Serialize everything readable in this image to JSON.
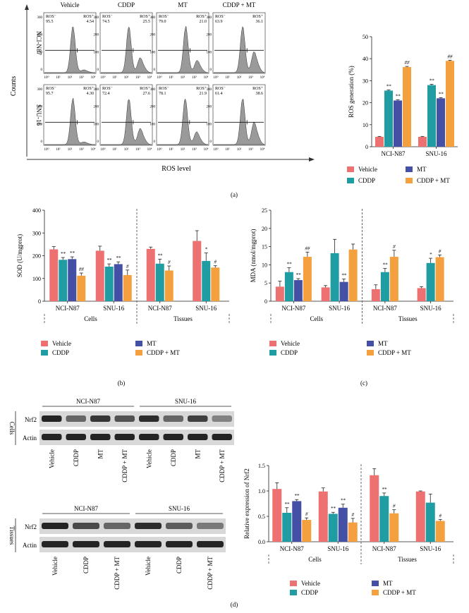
{
  "colors": {
    "vehicle": "#ee7171",
    "cddp": "#1f9da3",
    "mt": "#4450a6",
    "combo": "#f5a03e",
    "hist": "#9a9a9a",
    "wb_band": "#1a1a1a",
    "wb_bg": "#d8d8d8"
  },
  "panel_labels": [
    "(a)",
    "(b)",
    "(c)",
    "(d)"
  ],
  "flow": {
    "conditions": [
      "Vehicle",
      "CDDP",
      "MT",
      "CDDP + MT"
    ],
    "cell_lines": [
      "NCI-N87",
      "SNU-16"
    ],
    "y_label": "Counts",
    "x_label": "ROS level",
    "ros_minus_label": "ROS⁻",
    "ros_plus_label": "ROS⁺",
    "x_ticks": [
      "10⁰",
      "10¹",
      "10²",
      "10³",
      "10⁴"
    ],
    "y_ticks": [
      "0",
      "100",
      "200",
      "300"
    ],
    "percentages": [
      [
        [
          "95.5",
          "4.54"
        ],
        [
          "74.5",
          "25.5"
        ],
        [
          "79.0",
          "21.0"
        ],
        [
          "63.9",
          "36.1"
        ]
      ],
      [
        [
          "95.7",
          "4.30"
        ],
        [
          "72.4",
          "27.6"
        ],
        [
          "78.1",
          "21.9"
        ],
        [
          "61.4",
          "38.6"
        ]
      ]
    ]
  },
  "legend": {
    "vehicle": "Vehicle",
    "cddp": "CDDP",
    "mt": "MT",
    "combo": "CDDP + MT"
  },
  "group_labels": {
    "cells": "Cells",
    "tissues": "Tissues"
  },
  "wb": {
    "cell_lines": [
      "NCI-N87",
      "SNU-16"
    ],
    "row_labels": {
      "cells": "Cells",
      "tissues": "Tissues",
      "nrf2": "Nrf2",
      "actin": "Actin"
    },
    "lanes_cells": [
      "Vehicle",
      "CDDP",
      "MT",
      "CDDP + MT",
      "Vehicle",
      "CDDP",
      "MT",
      "CDDP + MT"
    ],
    "lanes_tissues": [
      "Vehicle",
      "CDDP",
      "CDDP + MT",
      "Vehicle",
      "CDDP",
      "CDDP + MT"
    ],
    "nrf2_intensity_cells": [
      0.95,
      0.6,
      0.85,
      0.7,
      0.9,
      0.6,
      0.8,
      0.45
    ],
    "nrf2_intensity_tissues": [
      0.95,
      0.75,
      0.6,
      0.9,
      0.65,
      0.5
    ]
  },
  "chart_data": [
    {
      "id": "ros",
      "type": "bar",
      "title": "",
      "ylabel": "ROS generation (%)",
      "categories": [
        "NCI-N87",
        "SNU-16"
      ],
      "ylim": [
        0,
        50
      ],
      "yticks": [
        0,
        10,
        20,
        30,
        40,
        50
      ],
      "series": [
        {
          "name": "Vehicle",
          "values": [
            4.5,
            4.5
          ],
          "errors": [
            0.2,
            0.2
          ],
          "sig": [
            "",
            ""
          ]
        },
        {
          "name": "CDDP",
          "values": [
            25.5,
            28
          ],
          "errors": [
            0.3,
            0.4
          ],
          "sig": [
            "**",
            "**"
          ]
        },
        {
          "name": "MT",
          "values": [
            21,
            22
          ],
          "errors": [
            0.3,
            0.3
          ],
          "sig": [
            "**",
            "**"
          ]
        },
        {
          "name": "CDDP + MT",
          "values": [
            36.2,
            39
          ],
          "errors": [
            0.3,
            0.3
          ],
          "sig": [
            "##",
            "##"
          ]
        }
      ]
    },
    {
      "id": "sod",
      "type": "bar",
      "ylabel": "SOD (U/mgprot)",
      "ylim": [
        0,
        400
      ],
      "yticks": [
        0,
        100,
        200,
        300,
        400
      ],
      "categories": [
        "NCI-N87",
        "SNU-16",
        "NCI-N87",
        "SNU-16"
      ],
      "groups": [
        "Cells",
        "Cells",
        "Tissues",
        "Tissues"
      ],
      "series": [
        {
          "name": "Vehicle",
          "values": [
            228,
            222,
            230,
            265
          ],
          "errors": [
            12,
            20,
            8,
            45
          ],
          "sig": [
            "",
            "",
            "",
            ""
          ]
        },
        {
          "name": "CDDP",
          "values": [
            182,
            152,
            165,
            177
          ],
          "errors": [
            10,
            12,
            20,
            35
          ],
          "sig": [
            "**",
            "**",
            "**",
            "*"
          ]
        },
        {
          "name": "MT",
          "values": [
            185,
            163,
            null,
            null
          ],
          "errors": [
            10,
            10,
            null,
            null
          ],
          "sig": [
            "**",
            "**",
            "",
            ""
          ]
        },
        {
          "name": "CDDP + MT",
          "values": [
            112,
            115,
            135,
            148
          ],
          "errors": [
            12,
            22,
            20,
            8
          ],
          "sig": [
            "##",
            "#",
            "#",
            "#"
          ]
        }
      ]
    },
    {
      "id": "mda",
      "type": "bar",
      "ylabel": "MDA (nmol/mgprot)",
      "ylim": [
        0,
        25
      ],
      "yticks": [
        0,
        5,
        10,
        15,
        20,
        25
      ],
      "categories": [
        "NCI-N87",
        "SNU-16",
        "NCI-N87",
        "SNU-16"
      ],
      "groups": [
        "Cells",
        "Cells",
        "Tissues",
        "Tissues"
      ],
      "series": [
        {
          "name": "Vehicle",
          "values": [
            4,
            3.8,
            3.3,
            3.6
          ],
          "errors": [
            1.5,
            0.5,
            1.2,
            0.4
          ],
          "sig": [
            "",
            "",
            "",
            ""
          ]
        },
        {
          "name": "CDDP",
          "values": [
            8,
            13.2,
            8,
            10.5
          ],
          "errors": [
            1.2,
            3.8,
            1.0,
            1.3
          ],
          "sig": [
            "**",
            "",
            "**",
            "*"
          ]
        },
        {
          "name": "MT",
          "values": [
            5.8,
            5.3,
            null,
            null
          ],
          "errors": [
            0.4,
            0.8,
            null,
            null
          ],
          "sig": [
            "**",
            "**",
            "",
            ""
          ]
        },
        {
          "name": "CDDP + MT",
          "values": [
            12.2,
            14.2,
            12.2,
            12.1
          ],
          "errors": [
            1.3,
            1.5,
            1.8,
            0.6
          ],
          "sig": [
            "##",
            "",
            "#",
            "#"
          ]
        }
      ]
    },
    {
      "id": "nrf2",
      "type": "bar",
      "ylabel": "Relative expression of Nrf2",
      "ylim": [
        0,
        1.5
      ],
      "yticks": [
        0.0,
        0.5,
        1.0,
        1.5
      ],
      "categories": [
        "NCI-N87",
        "SNU-16",
        "NCI-N87",
        "SNU-16"
      ],
      "groups": [
        "Cells",
        "Cells",
        "Tissues",
        "Tissues"
      ],
      "series": [
        {
          "name": "Vehicle",
          "values": [
            1.04,
            0.99,
            1.31,
            0.99
          ],
          "errors": [
            0.12,
            0.07,
            0.13,
            0.01
          ],
          "sig": [
            "",
            "",
            "",
            ""
          ]
        },
        {
          "name": "CDDP",
          "values": [
            0.57,
            0.55,
            0.9,
            0.77
          ],
          "errors": [
            0.1,
            0.03,
            0.06,
            0.17
          ],
          "sig": [
            "**",
            "**",
            "**",
            ""
          ]
        },
        {
          "name": "MT",
          "values": [
            0.8,
            0.67,
            null,
            null
          ],
          "errors": [
            0.03,
            0.07,
            null,
            null
          ],
          "sig": [
            "**",
            "**",
            "",
            ""
          ]
        },
        {
          "name": "CDDP + MT",
          "values": [
            0.43,
            0.38,
            0.56,
            0.41
          ],
          "errors": [
            0.04,
            0.08,
            0.07,
            0.03
          ],
          "sig": [
            "#",
            "#",
            "#",
            "#"
          ]
        }
      ]
    }
  ]
}
